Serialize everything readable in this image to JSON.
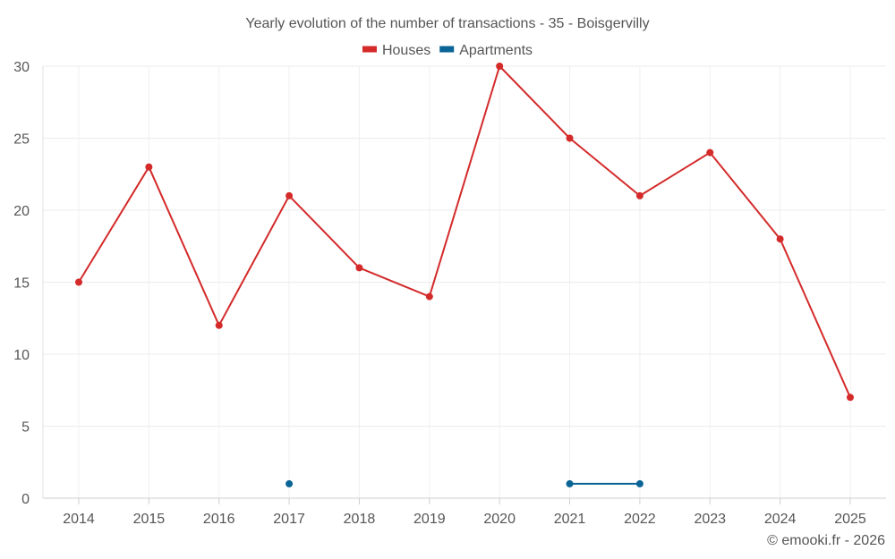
{
  "chart_data": {
    "type": "line",
    "title": "Yearly evolution of the number of transactions - 35 - Boisgervilly",
    "xlabel": "",
    "ylabel": "",
    "ylim": [
      0,
      30
    ],
    "yticks": [
      0,
      5,
      10,
      15,
      20,
      25,
      30
    ],
    "categories": [
      "2014",
      "2015",
      "2016",
      "2017",
      "2018",
      "2019",
      "2020",
      "2021",
      "2022",
      "2023",
      "2024",
      "2025"
    ],
    "legend_position": "top-center",
    "grid": true,
    "series": [
      {
        "name": "Houses",
        "color": "#d42a2a",
        "values": [
          15,
          23,
          12,
          21,
          16,
          14,
          30,
          25,
          21,
          24,
          18,
          7
        ]
      },
      {
        "name": "Apartments",
        "color": "#0a6496",
        "values": [
          null,
          null,
          null,
          1,
          null,
          null,
          null,
          1,
          1,
          null,
          null,
          null
        ]
      }
    ]
  },
  "credit": "© emooki.fr - 2026"
}
